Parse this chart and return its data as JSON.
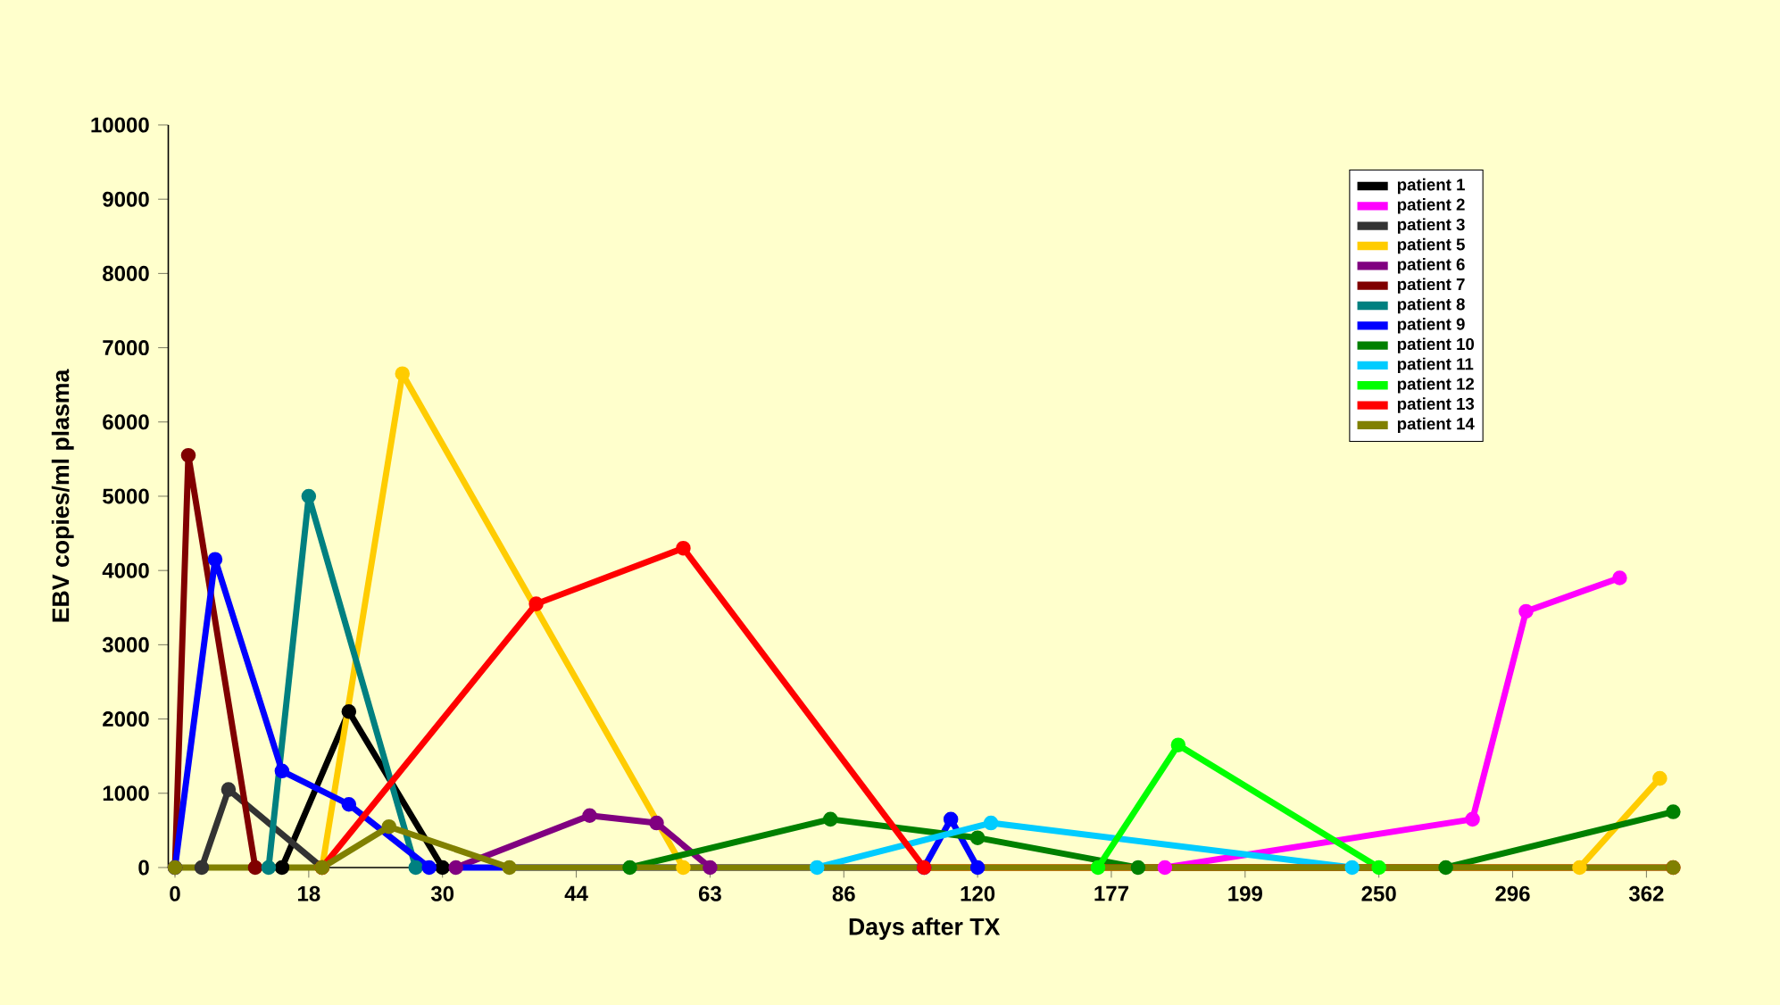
{
  "chart_data": {
    "type": "line",
    "xlabel": "Days after TX",
    "ylabel": "EBV copies/ml plasma",
    "categories": [
      "0",
      null,
      null,
      null,
      null,
      null,
      null,
      null,
      null,
      null,
      "18",
      null,
      null,
      null,
      null,
      null,
      null,
      null,
      null,
      null,
      "30",
      null,
      null,
      null,
      null,
      null,
      null,
      null,
      null,
      null,
      "44",
      null,
      null,
      null,
      null,
      null,
      null,
      null,
      null,
      null,
      "63",
      null,
      null,
      null,
      null,
      null,
      null,
      null,
      null,
      null,
      "86",
      null,
      null,
      null,
      null,
      null,
      null,
      null,
      null,
      null,
      "120",
      null,
      null,
      null,
      null,
      null,
      null,
      null,
      null,
      null,
      "177",
      null,
      null,
      null,
      null,
      null,
      null,
      null,
      null,
      null,
      "199",
      null,
      null,
      null,
      null,
      null,
      null,
      null,
      null,
      null,
      "250",
      null,
      null,
      null,
      null,
      null,
      null,
      null,
      null,
      null,
      "296",
      null,
      null,
      null,
      null,
      null,
      null,
      null,
      null,
      null,
      "362",
      null,
      null
    ],
    "ylim": [
      0,
      10000
    ],
    "yticks": [
      0,
      1000,
      2000,
      3000,
      4000,
      5000,
      6000,
      7000,
      8000,
      9000,
      10000
    ],
    "legend": "top right",
    "marker": "circle",
    "line_style": "solid",
    "series": [
      {
        "name": "patient 1",
        "color": "#000000",
        "values": [
          null,
          null,
          null,
          null,
          null,
          null,
          null,
          null,
          0,
          null,
          null,
          null,
          null,
          2100,
          null,
          null,
          null,
          null,
          null,
          null,
          0,
          null,
          null,
          null,
          null,
          null,
          null,
          null,
          null,
          null,
          null,
          null,
          null,
          null,
          null,
          null,
          null,
          null,
          null,
          null,
          null,
          null,
          null,
          null,
          null,
          null,
          null,
          null,
          null,
          null,
          null,
          null,
          null,
          null,
          null,
          null,
          null,
          null,
          null,
          null,
          null,
          null,
          null,
          null,
          null,
          null,
          null,
          null,
          null,
          null,
          null,
          null,
          null,
          null,
          null,
          null,
          null,
          null,
          null,
          null,
          null,
          null,
          null,
          null,
          null,
          null,
          null,
          null,
          null,
          null,
          null,
          null,
          null,
          null,
          null,
          null,
          null,
          null,
          null,
          null,
          null,
          null,
          null,
          null,
          null,
          null,
          null,
          null,
          null,
          null,
          null,
          null,
          null
        ]
      },
      {
        "name": "patient 2",
        "color": "#ff00ff",
        "values": [
          null,
          null,
          null,
          null,
          null,
          null,
          null,
          null,
          null,
          null,
          null,
          null,
          null,
          null,
          null,
          null,
          null,
          null,
          null,
          null,
          null,
          null,
          null,
          null,
          null,
          null,
          null,
          null,
          null,
          null,
          null,
          null,
          null,
          null,
          null,
          null,
          null,
          null,
          null,
          null,
          null,
          null,
          null,
          null,
          null,
          null,
          null,
          null,
          null,
          null,
          null,
          null,
          null,
          null,
          null,
          null,
          null,
          null,
          null,
          null,
          null,
          null,
          null,
          null,
          null,
          null,
          null,
          null,
          null,
          null,
          null,
          null,
          null,
          null,
          0,
          null,
          null,
          null,
          null,
          null,
          null,
          null,
          null,
          null,
          null,
          null,
          null,
          null,
          null,
          null,
          null,
          null,
          null,
          null,
          null,
          null,
          null,
          650,
          null,
          null,
          null,
          3450,
          null,
          null,
          null,
          null,
          null,
          null,
          3900,
          null,
          null,
          null,
          null
        ]
      },
      {
        "name": "patient 3",
        "color": "#333333",
        "values": [
          null,
          null,
          0,
          null,
          1050,
          null,
          null,
          null,
          null,
          null,
          null,
          0,
          null,
          null,
          null,
          null,
          null,
          null,
          null,
          null,
          null,
          null,
          null,
          null,
          null,
          null,
          null,
          null,
          null,
          null,
          null,
          null,
          null,
          null,
          null,
          null,
          null,
          null,
          null,
          null,
          null,
          null,
          null,
          null,
          null,
          null,
          null,
          null,
          null,
          null,
          null,
          null,
          null,
          null,
          null,
          null,
          null,
          null,
          null,
          null,
          null,
          null,
          null,
          null,
          null,
          null,
          null,
          null,
          null,
          null,
          null,
          null,
          null,
          null,
          null,
          null,
          null,
          null,
          null,
          null,
          null,
          null,
          null,
          null,
          null,
          null,
          null,
          null,
          null,
          null,
          null,
          null,
          null,
          null,
          null,
          null,
          null,
          null,
          null,
          null,
          null,
          null,
          null,
          null,
          null,
          null,
          null,
          null,
          null,
          null,
          null,
          null,
          null
        ]
      },
      {
        "name": "patient 5",
        "color": "#ffcc00",
        "values": [
          null,
          null,
          null,
          null,
          null,
          null,
          null,
          null,
          null,
          null,
          null,
          0,
          null,
          null,
          null,
          null,
          null,
          6650,
          null,
          null,
          null,
          null,
          null,
          null,
          null,
          null,
          null,
          null,
          null,
          null,
          null,
          null,
          null,
          null,
          null,
          null,
          null,
          null,
          0,
          null,
          null,
          null,
          null,
          null,
          null,
          null,
          null,
          null,
          null,
          null,
          null,
          null,
          null,
          null,
          null,
          null,
          null,
          null,
          null,
          null,
          null,
          null,
          null,
          null,
          null,
          null,
          null,
          null,
          null,
          null,
          null,
          null,
          null,
          null,
          null,
          null,
          null,
          null,
          null,
          null,
          null,
          null,
          null,
          null,
          null,
          null,
          null,
          null,
          null,
          null,
          null,
          null,
          null,
          null,
          null,
          null,
          null,
          null,
          null,
          null,
          null,
          null,
          null,
          null,
          null,
          0,
          null,
          null,
          null,
          null,
          null,
          1200,
          null
        ]
      },
      {
        "name": "patient 6",
        "color": "#800080",
        "values": [
          null,
          null,
          null,
          null,
          null,
          null,
          null,
          null,
          null,
          null,
          null,
          null,
          null,
          null,
          null,
          null,
          null,
          null,
          null,
          null,
          null,
          0,
          null,
          null,
          null,
          null,
          null,
          null,
          null,
          null,
          null,
          700,
          null,
          null,
          null,
          null,
          600,
          null,
          null,
          null,
          0,
          null,
          null,
          null,
          null,
          null,
          null,
          null,
          null,
          null,
          null,
          null,
          null,
          null,
          null,
          null,
          null,
          null,
          null,
          null,
          null,
          null,
          null,
          null,
          null,
          null,
          null,
          null,
          null,
          null,
          null,
          null,
          null,
          null,
          null,
          null,
          null,
          null,
          null,
          null,
          null,
          null,
          null,
          null,
          null,
          null,
          null,
          null,
          null,
          null,
          null,
          null,
          null,
          null,
          null,
          null,
          null,
          null,
          null,
          null,
          null,
          null,
          null,
          null,
          null,
          null,
          null,
          null,
          null,
          null,
          null,
          null,
          null
        ]
      },
      {
        "name": "patient 7",
        "color": "#800000",
        "values": [
          0,
          5550,
          null,
          null,
          null,
          null,
          0,
          null,
          null,
          null,
          null,
          null,
          null,
          null,
          null,
          null,
          null,
          null,
          null,
          null,
          null,
          null,
          null,
          null,
          null,
          null,
          null,
          null,
          null,
          null,
          null,
          null,
          null,
          null,
          null,
          null,
          null,
          null,
          null,
          null,
          null,
          null,
          null,
          null,
          null,
          null,
          null,
          null,
          null,
          null,
          null,
          null,
          null,
          null,
          null,
          null,
          null,
          null,
          null,
          null,
          null,
          null,
          null,
          null,
          null,
          null,
          null,
          null,
          null,
          null,
          null,
          null,
          null,
          null,
          null,
          null,
          null,
          null,
          null,
          null,
          null,
          null,
          null,
          null,
          null,
          null,
          null,
          null,
          null,
          null,
          null,
          null,
          null,
          null,
          null,
          null,
          null,
          null,
          null,
          null,
          null,
          null,
          null,
          null,
          null,
          null,
          null,
          null,
          null,
          null,
          null,
          null,
          null
        ]
      },
      {
        "name": "patient 8",
        "color": "#008080",
        "values": [
          null,
          null,
          null,
          null,
          null,
          null,
          null,
          0,
          null,
          null,
          5000,
          null,
          null,
          null,
          null,
          null,
          null,
          null,
          0,
          null,
          null,
          null,
          null,
          null,
          null,
          null,
          null,
          null,
          null,
          null,
          null,
          null,
          null,
          null,
          null,
          null,
          null,
          null,
          null,
          null,
          null,
          null,
          null,
          null,
          null,
          null,
          null,
          null,
          null,
          null,
          null,
          null,
          null,
          null,
          null,
          null,
          null,
          null,
          null,
          null,
          null,
          null,
          null,
          null,
          null,
          null,
          null,
          null,
          null,
          null,
          null,
          null,
          null,
          null,
          null,
          null,
          null,
          null,
          null,
          null,
          null,
          null,
          null,
          null,
          null,
          null,
          null,
          null,
          null,
          null,
          null,
          null,
          null,
          null,
          null,
          null,
          null,
          null,
          null,
          null,
          null,
          null,
          null,
          null,
          null,
          null,
          null,
          null,
          null,
          null,
          null,
          null,
          null
        ]
      },
      {
        "name": "patient 9",
        "color": "#0000ff",
        "values": [
          0,
          null,
          null,
          4150,
          null,
          null,
          null,
          null,
          1300,
          null,
          null,
          null,
          null,
          850,
          null,
          null,
          null,
          null,
          null,
          0,
          null,
          null,
          null,
          null,
          null,
          null,
          null,
          null,
          null,
          null,
          null,
          null,
          null,
          null,
          null,
          null,
          null,
          null,
          null,
          null,
          null,
          null,
          null,
          null,
          null,
          null,
          null,
          null,
          null,
          null,
          null,
          null,
          null,
          null,
          null,
          null,
          0,
          null,
          650,
          null,
          0,
          null,
          null,
          null,
          null,
          null,
          null,
          null,
          null,
          null,
          null,
          null,
          null,
          null,
          null,
          null,
          null,
          null,
          null,
          null,
          null,
          null,
          null,
          null,
          null,
          null,
          null,
          null,
          null,
          null,
          null,
          null,
          null,
          null,
          null,
          null,
          null,
          null,
          null,
          null,
          null,
          null,
          null,
          null,
          null,
          null,
          null,
          null,
          null,
          null,
          null,
          null,
          null
        ]
      },
      {
        "name": "patient 10",
        "color": "#008000",
        "values": [
          null,
          null,
          null,
          null,
          null,
          null,
          null,
          null,
          null,
          null,
          null,
          null,
          null,
          null,
          null,
          null,
          null,
          null,
          null,
          null,
          null,
          null,
          null,
          null,
          null,
          null,
          null,
          null,
          null,
          null,
          null,
          null,
          null,
          null,
          0,
          null,
          null,
          null,
          null,
          null,
          null,
          null,
          null,
          null,
          null,
          null,
          null,
          null,
          null,
          650,
          null,
          null,
          null,
          null,
          null,
          null,
          null,
          null,
          null,
          null,
          400,
          null,
          null,
          null,
          null,
          null,
          null,
          null,
          null,
          null,
          null,
          null,
          0,
          null,
          null,
          null,
          null,
          null,
          null,
          null,
          null,
          null,
          null,
          null,
          null,
          null,
          null,
          null,
          null,
          null,
          null,
          null,
          null,
          null,
          null,
          0,
          null,
          null,
          null,
          null,
          null,
          null,
          null,
          null,
          null,
          null,
          null,
          null,
          null,
          null,
          null,
          null,
          750
        ]
      },
      {
        "name": "patient 11",
        "color": "#00ccff",
        "values": [
          null,
          null,
          null,
          null,
          null,
          null,
          null,
          null,
          null,
          null,
          null,
          null,
          null,
          null,
          null,
          null,
          null,
          null,
          null,
          null,
          null,
          null,
          null,
          null,
          null,
          null,
          null,
          null,
          null,
          null,
          null,
          null,
          null,
          null,
          null,
          null,
          null,
          null,
          null,
          null,
          null,
          null,
          null,
          null,
          null,
          null,
          null,
          null,
          0,
          null,
          null,
          null,
          null,
          null,
          null,
          null,
          null,
          null,
          null,
          null,
          null,
          600,
          null,
          null,
          null,
          null,
          null,
          null,
          null,
          null,
          null,
          null,
          null,
          null,
          null,
          null,
          null,
          null,
          null,
          null,
          null,
          null,
          null,
          null,
          null,
          null,
          null,
          null,
          0,
          null,
          null,
          null,
          null,
          null,
          null,
          null,
          null,
          null,
          null,
          null,
          null,
          null,
          null,
          null,
          null,
          null,
          null,
          null,
          null,
          null,
          null,
          null,
          null
        ]
      },
      {
        "name": "patient 12",
        "color": "#00ff00",
        "values": [
          null,
          null,
          null,
          null,
          null,
          null,
          null,
          null,
          null,
          null,
          null,
          null,
          null,
          null,
          null,
          null,
          null,
          null,
          null,
          null,
          null,
          null,
          null,
          null,
          null,
          null,
          null,
          null,
          null,
          null,
          null,
          null,
          null,
          null,
          null,
          null,
          null,
          null,
          null,
          null,
          null,
          null,
          null,
          null,
          null,
          null,
          null,
          null,
          null,
          null,
          null,
          null,
          null,
          null,
          null,
          null,
          null,
          null,
          null,
          null,
          null,
          null,
          null,
          null,
          null,
          null,
          null,
          null,
          null,
          0,
          null,
          null,
          null,
          null,
          null,
          1650,
          null,
          null,
          null,
          null,
          null,
          null,
          null,
          null,
          null,
          null,
          null,
          null,
          null,
          null,
          0,
          null,
          null,
          null,
          null,
          null,
          null,
          null,
          null,
          null,
          null,
          null,
          null,
          null,
          null,
          null,
          null,
          null,
          null,
          null,
          null,
          null,
          null
        ]
      },
      {
        "name": "patient 13",
        "color": "#ff0000",
        "values": [
          null,
          null,
          null,
          null,
          null,
          null,
          null,
          null,
          null,
          null,
          null,
          0,
          null,
          null,
          null,
          null,
          null,
          null,
          null,
          null,
          null,
          null,
          null,
          null,
          null,
          null,
          null,
          3550,
          null,
          null,
          null,
          null,
          null,
          null,
          null,
          null,
          null,
          null,
          4300,
          null,
          null,
          null,
          null,
          null,
          null,
          null,
          null,
          null,
          null,
          null,
          null,
          null,
          null,
          null,
          null,
          null,
          0,
          null,
          null,
          null,
          null,
          null,
          null,
          null,
          null,
          null,
          null,
          null,
          null,
          null,
          null,
          null,
          null,
          null,
          null,
          null,
          null,
          null,
          null,
          null,
          null,
          null,
          null,
          null,
          null,
          null,
          null,
          null,
          null,
          null,
          null,
          null,
          null,
          null,
          null,
          null,
          null,
          null,
          null,
          null,
          null,
          null,
          null,
          null,
          null,
          null,
          null,
          null,
          null,
          null,
          null,
          null,
          0
        ]
      },
      {
        "name": "patient 14",
        "color": "#808000",
        "values": [
          0,
          null,
          null,
          null,
          null,
          null,
          null,
          null,
          null,
          null,
          null,
          0,
          null,
          null,
          null,
          null,
          550,
          null,
          null,
          null,
          null,
          null,
          null,
          null,
          null,
          0,
          null,
          null,
          null,
          null,
          null,
          null,
          null,
          null,
          null,
          null,
          null,
          null,
          null,
          null,
          null,
          null,
          null,
          null,
          null,
          null,
          null,
          null,
          null,
          null,
          null,
          null,
          null,
          null,
          null,
          null,
          null,
          null,
          null,
          null,
          null,
          null,
          null,
          null,
          null,
          null,
          null,
          null,
          null,
          null,
          null,
          null,
          null,
          null,
          null,
          null,
          null,
          null,
          null,
          null,
          null,
          null,
          null,
          null,
          null,
          null,
          null,
          null,
          null,
          null,
          null,
          null,
          null,
          null,
          null,
          null,
          null,
          null,
          null,
          null,
          null,
          null,
          null,
          null,
          null,
          null,
          null,
          null,
          null,
          null,
          null,
          null,
          0
        ]
      }
    ]
  }
}
